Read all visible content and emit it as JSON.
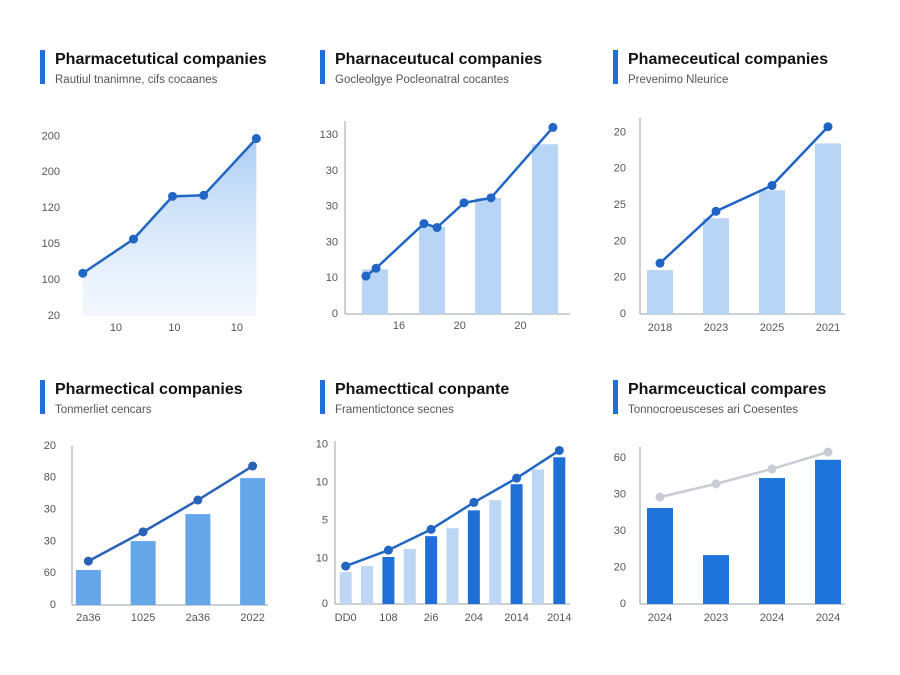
{
  "chart_data": [
    {
      "type": "area",
      "title": "Pharmacetutical companies",
      "subtitle": "Rautiul tnanimne, cifs cocaanes",
      "ylim": [
        0,
        5.4
      ],
      "yticks": [
        {
          "value": 0,
          "label": "20"
        },
        {
          "value": 1,
          "label": "100"
        },
        {
          "value": 2,
          "label": "105"
        },
        {
          "value": 3,
          "label": "120"
        },
        {
          "value": 4,
          "label": "200"
        },
        {
          "value": 5,
          "label": "200"
        }
      ],
      "xlim": [
        0,
        10
      ],
      "xticks": [
        {
          "value": 2.1,
          "label": "10"
        },
        {
          "value": 5.1,
          "label": "10"
        },
        {
          "value": 8.3,
          "label": "10"
        }
      ],
      "series": [
        {
          "type": "line",
          "color": "#2166c4",
          "x": [
            0.4,
            3.0,
            5.0,
            6.6,
            9.3
          ],
          "values": [
            1.19,
            2.14,
            3.33,
            3.36,
            4.94
          ]
        }
      ]
    },
    {
      "type": "combo",
      "title": "Pharnaceutucal companies",
      "subtitle": "Gocleolgye Pocleonatral cocantes",
      "ylim": [
        0,
        5.4
      ],
      "yticks": [
        0,
        {
          "value": 1,
          "label": "10"
        },
        {
          "value": 2,
          "label": "30"
        },
        {
          "value": 3,
          "label": "30"
        },
        {
          "value": 4,
          "label": "30"
        },
        {
          "value": 5,
          "label": "130"
        }
      ],
      "xlim": [
        0,
        10
      ],
      "xticks": [
        {
          "value": 2.4,
          "label": "16"
        },
        {
          "value": 5.1,
          "label": "20"
        },
        {
          "value": 7.8,
          "label": "20"
        }
      ],
      "series": [
        {
          "type": "bar",
          "color": "#b9d5f5",
          "x": [
            1.33,
            3.87,
            6.36,
            8.89
          ],
          "values": [
            1.25,
            2.44,
            3.25,
            4.75
          ]
        },
        {
          "type": "line",
          "color": "#2166c4",
          "x": [
            0.93,
            1.38,
            3.51,
            4.09,
            5.29,
            6.49,
            9.24
          ],
          "values": [
            1.06,
            1.28,
            2.53,
            2.42,
            3.11,
            3.25,
            5.22
          ]
        }
      ]
    },
    {
      "type": "combo",
      "title": "Phameceutical companies",
      "subtitle": "Prevenimo Nleurice",
      "ylim": [
        0,
        5.4
      ],
      "yticks": [
        0,
        {
          "value": 1,
          "label": "20"
        },
        {
          "value": 2,
          "label": "20"
        },
        {
          "value": 3,
          "label": "25"
        },
        {
          "value": 4,
          "label": "20"
        },
        {
          "value": 5,
          "label": "20"
        }
      ],
      "categories": [
        "2018",
        "2023",
        "2025",
        "2021"
      ],
      "series": [
        {
          "type": "bar",
          "color": "#b9d5f5",
          "values": [
            1.21,
            2.64,
            3.41,
            4.7
          ]
        },
        {
          "type": "line",
          "color": "#1f63c6",
          "values": [
            1.4,
            2.83,
            3.54,
            5.16
          ]
        }
      ]
    },
    {
      "type": "combo",
      "title": "Pharmectical companies",
      "subtitle": "Tonmerliet cencars",
      "ylim": [
        0,
        5
      ],
      "yticks": [
        0,
        {
          "value": 1,
          "label": "60"
        },
        {
          "value": 2,
          "label": "30"
        },
        {
          "value": 3,
          "label": "30"
        },
        {
          "value": 4,
          "label": "80"
        },
        {
          "value": 5,
          "label": "20"
        }
      ],
      "categories": [
        "2a36",
        "1025",
        "2a36",
        "2022"
      ],
      "series": [
        {
          "type": "bar",
          "color": "#64a6e8",
          "values": [
            1.1,
            2.01,
            2.86,
            3.99
          ]
        },
        {
          "type": "line",
          "color": "#2a62b8",
          "values": [
            1.38,
            2.3,
            3.3,
            4.37
          ]
        }
      ]
    },
    {
      "type": "combo",
      "title": "Phamecttical conpante",
      "subtitle": "Framentictonce secnes",
      "ylim": [
        0,
        4.3
      ],
      "yticks": [
        0,
        {
          "value": 1.2,
          "label": "10"
        },
        {
          "value": 2.2,
          "label": "5"
        },
        {
          "value": 3.2,
          "label": "10"
        },
        {
          "value": 4.2,
          "label": "10"
        }
      ],
      "xlim": [
        -0.5,
        10.5
      ],
      "xticks": [
        {
          "value": 0,
          "label": "DD0"
        },
        {
          "value": 2,
          "label": "108"
        },
        {
          "value": 4,
          "label": "2i6"
        },
        {
          "value": 6,
          "label": "204"
        },
        {
          "value": 8,
          "label": "2014"
        },
        {
          "value": 10,
          "label": "2014"
        }
      ],
      "series": [
        {
          "type": "bar",
          "color": "#bcd6f4",
          "x": [
            0,
            1,
            3,
            5,
            7,
            9
          ],
          "values": [
            0.84,
            1.0,
            1.45,
            2.0,
            2.74,
            3.55
          ]
        },
        {
          "type": "bar",
          "color": "#1f6fd6",
          "x": [
            2,
            4,
            6,
            8,
            10
          ],
          "values": [
            1.24,
            1.79,
            2.47,
            3.16,
            3.87
          ]
        },
        {
          "type": "line",
          "color": "#2166c4",
          "x": [
            0,
            2,
            4,
            6,
            8,
            10
          ],
          "values": [
            1.0,
            1.42,
            1.97,
            2.68,
            3.32,
            4.05
          ]
        }
      ]
    },
    {
      "type": "combo",
      "title": "Pharmceuctical compares",
      "subtitle": "Tonnocroeusceses ari Coesentes",
      "ylim": [
        0,
        4.3
      ],
      "yticks": [
        0,
        {
          "value": 1,
          "label": "20"
        },
        {
          "value": 2,
          "label": "30"
        },
        {
          "value": 3,
          "label": "30"
        },
        {
          "value": 4,
          "label": "60"
        }
      ],
      "categories": [
        "2024",
        "2023",
        "2024",
        "2024"
      ],
      "series": [
        {
          "type": "bar",
          "color": "#1f74db",
          "values": [
            2.63,
            1.34,
            3.45,
            3.95
          ]
        },
        {
          "type": "line",
          "color": "#c8ccd4",
          "values": [
            2.93,
            3.29,
            3.7,
            4.16
          ]
        }
      ]
    }
  ]
}
